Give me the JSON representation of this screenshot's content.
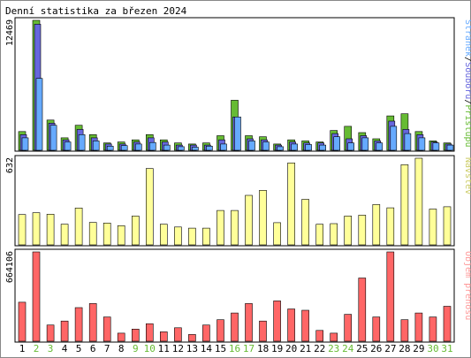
{
  "title": "Denní statistika za březen 2024",
  "colors": {
    "hits": "#66bb33",
    "files": "#6666dd",
    "pages": "#66aaff",
    "visits": "#ffff99",
    "volume": "#ff6666",
    "visits_label": "#cccc66",
    "volume_label": "#ff9999",
    "weekend_day": "#66bb33",
    "weekday": "#000000"
  },
  "chart_data": [
    {
      "type": "bar",
      "title": "Denní statistika za březen 2024",
      "categories": [
        "1",
        "2",
        "3",
        "4",
        "5",
        "6",
        "7",
        "8",
        "9",
        "10",
        "11",
        "12",
        "13",
        "14",
        "15",
        "16",
        "17",
        "18",
        "19",
        "20",
        "21",
        "22",
        "23",
        "24",
        "25",
        "26",
        "27",
        "28",
        "29",
        "30",
        "31"
      ],
      "weekend_days": [
        "2",
        "3",
        "9",
        "10",
        "16",
        "17",
        "23",
        "24",
        "30",
        "31"
      ],
      "ylabel_parts": [
        {
          "key": "hits",
          "text": "Přístupů"
        },
        {
          "key": "sep",
          "text": "/"
        },
        {
          "key": "files",
          "text": "Souborů"
        },
        {
          "key": "sep",
          "text": "/"
        },
        {
          "key": "pages",
          "text": "Stránek"
        }
      ],
      "ymax_label": "12469",
      "ylim": [
        0,
        12469
      ],
      "series": [
        {
          "name": "Přístupů",
          "color_key": "hits",
          "values": [
            1800,
            12469,
            2900,
            1200,
            2400,
            1500,
            700,
            800,
            1000,
            1500,
            1000,
            700,
            600,
            700,
            1400,
            4800,
            1400,
            1300,
            600,
            1000,
            900,
            800,
            1900,
            2300,
            1700,
            1100,
            3300,
            3500,
            1800,
            900,
            700
          ]
        },
        {
          "name": "Souborů",
          "color_key": "files",
          "values": [
            1500,
            12100,
            2600,
            1000,
            2000,
            1200,
            600,
            600,
            800,
            1200,
            800,
            500,
            500,
            500,
            1000,
            3200,
            1100,
            1000,
            500,
            800,
            700,
            700,
            1600,
            1100,
            1400,
            900,
            2800,
            2000,
            1500,
            800,
            600
          ]
        },
        {
          "name": "Stránek",
          "color_key": "pages",
          "values": [
            1200,
            6900,
            2400,
            800,
            1500,
            900,
            400,
            450,
            600,
            750,
            500,
            350,
            300,
            400,
            600,
            3200,
            900,
            800,
            350,
            600,
            550,
            500,
            1300,
            700,
            1200,
            700,
            2300,
            1600,
            1200,
            700,
            500
          ]
        }
      ]
    },
    {
      "type": "bar",
      "categories": [
        "1",
        "2",
        "3",
        "4",
        "5",
        "6",
        "7",
        "8",
        "9",
        "10",
        "11",
        "12",
        "13",
        "14",
        "15",
        "16",
        "17",
        "18",
        "19",
        "20",
        "21",
        "22",
        "23",
        "24",
        "25",
        "26",
        "27",
        "28",
        "29",
        "30",
        "31"
      ],
      "ylabel": "Návštěv",
      "ymax_label": "632",
      "ylim": [
        0,
        632
      ],
      "series": [
        {
          "name": "Návštěv",
          "color_key": "visits",
          "values": [
            221,
            235,
            224,
            151,
            269,
            164,
            159,
            140,
            210,
            557,
            151,
            130,
            122,
            122,
            251,
            251,
            361,
            398,
            162,
            598,
            332,
            150,
            155,
            210,
            217,
            294,
            270,
            585,
            632,
            261,
            278
          ]
        }
      ]
    },
    {
      "type": "bar",
      "categories": [
        "1",
        "2",
        "3",
        "4",
        "5",
        "6",
        "7",
        "8",
        "9",
        "10",
        "11",
        "12",
        "13",
        "14",
        "15",
        "16",
        "17",
        "18",
        "19",
        "20",
        "21",
        "22",
        "23",
        "24",
        "25",
        "26",
        "27",
        "28",
        "29",
        "30",
        "31"
      ],
      "ylabel": "Objem přenosu",
      "ymax_label": "664106",
      "ylim": [
        0,
        664106
      ],
      "series": [
        {
          "name": "Objem přenosu",
          "color_key": "volume",
          "values": [
            290000,
            664106,
            120000,
            150000,
            250000,
            280000,
            180000,
            60000,
            90000,
            130000,
            70000,
            100000,
            50000,
            120000,
            160000,
            210000,
            280000,
            150000,
            300000,
            240000,
            230000,
            80000,
            60000,
            200000,
            470000,
            180000,
            664106,
            160000,
            210000,
            180000,
            260000
          ]
        }
      ]
    }
  ]
}
